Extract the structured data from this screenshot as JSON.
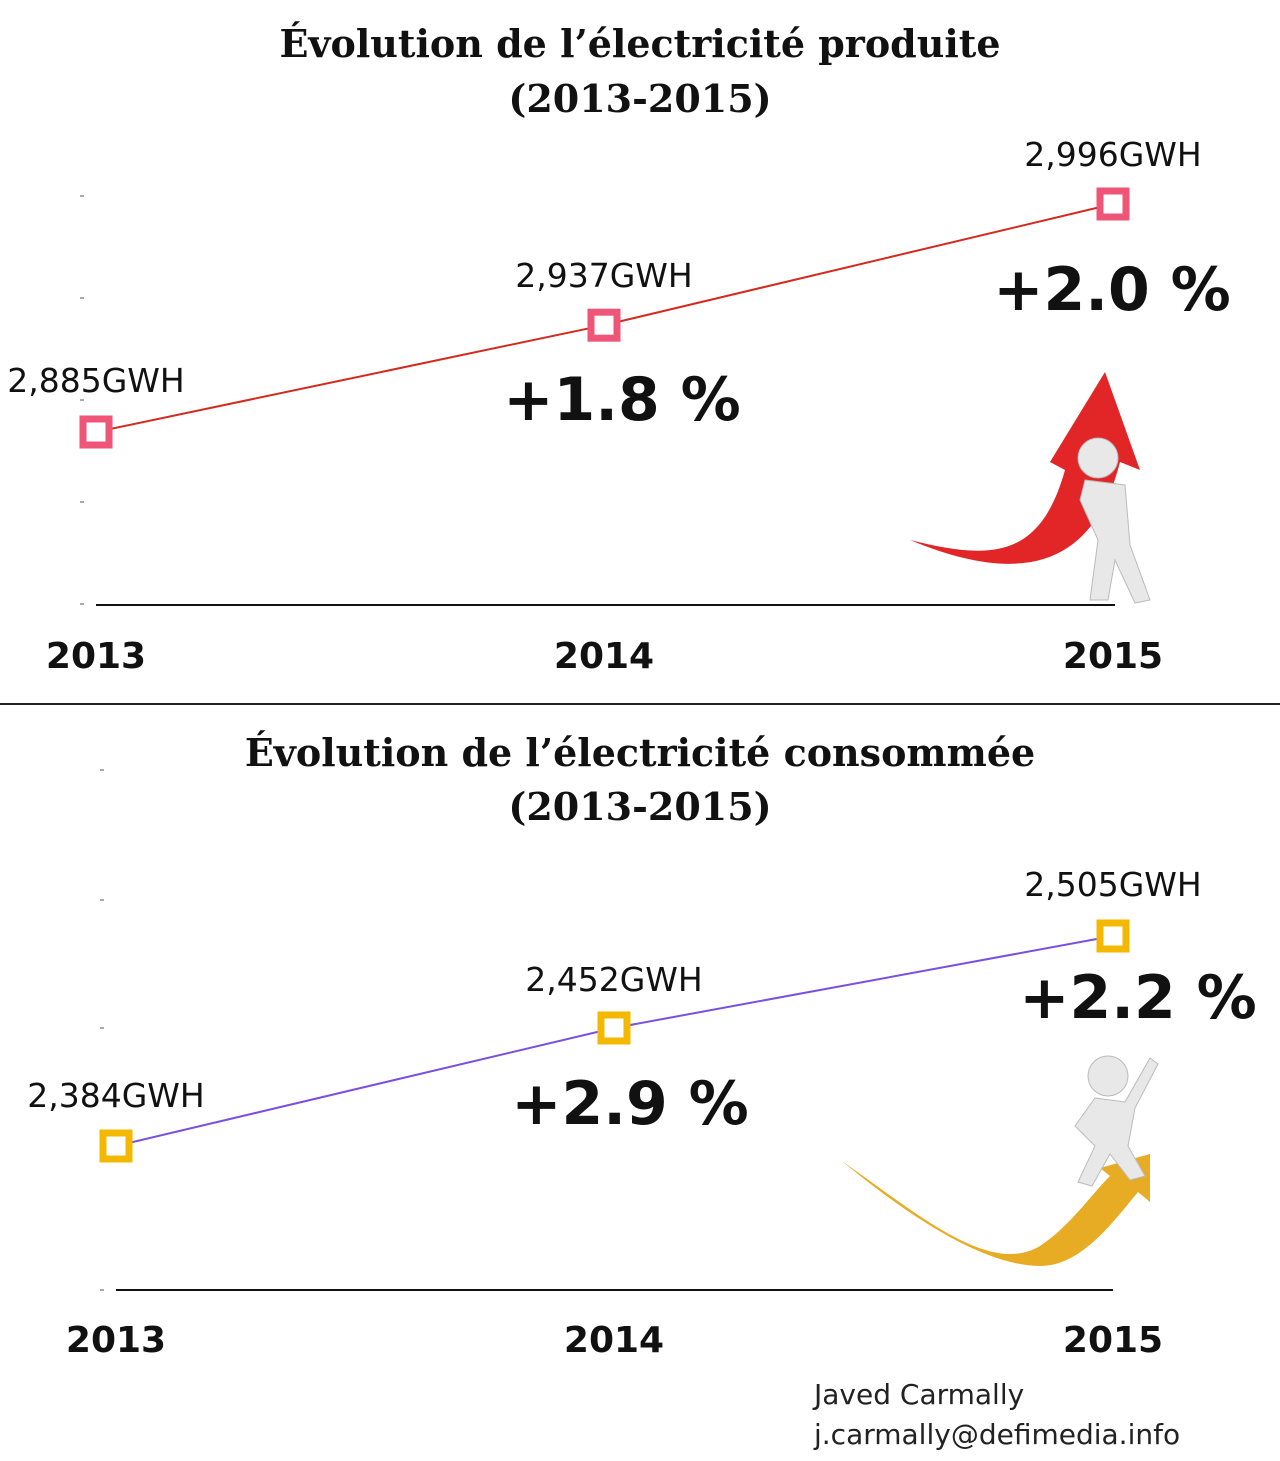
{
  "chart_data": [
    {
      "type": "line",
      "title": "Évolution de l’électricité produite",
      "subtitle": "(2013-2015)",
      "x": [
        "2013",
        "2014",
        "2015"
      ],
      "values": [
        2885,
        2937,
        2996
      ],
      "value_labels": [
        "2,885GWH",
        "2,937GWH",
        "2,996GWH"
      ],
      "change_labels": [
        "+1.8 %",
        "+2.0 %"
      ],
      "line_color": "#d42a1e",
      "marker_color": "#ee5577",
      "grid": false
    },
    {
      "type": "line",
      "title": "Évolution de l’électricité consommée",
      "subtitle": "(2013-2015)",
      "x": [
        "2013",
        "2014",
        "2015"
      ],
      "values": [
        2384,
        2452,
        2505
      ],
      "value_labels": [
        "2,384GWH",
        "2,452GWH",
        "2,505GWH"
      ],
      "change_labels": [
        "+2.9 %",
        "+2.2 %"
      ],
      "line_color": "#7b4fe0",
      "marker_color": "#f5b800",
      "grid": false
    }
  ],
  "credit": {
    "name": "Javed Carmally",
    "email": "j.carmally@defimedia.info"
  },
  "colors": {
    "arrow_red": "#e0191a",
    "arrow_gold": "#e6a817",
    "figure": "#e8e8e8"
  }
}
